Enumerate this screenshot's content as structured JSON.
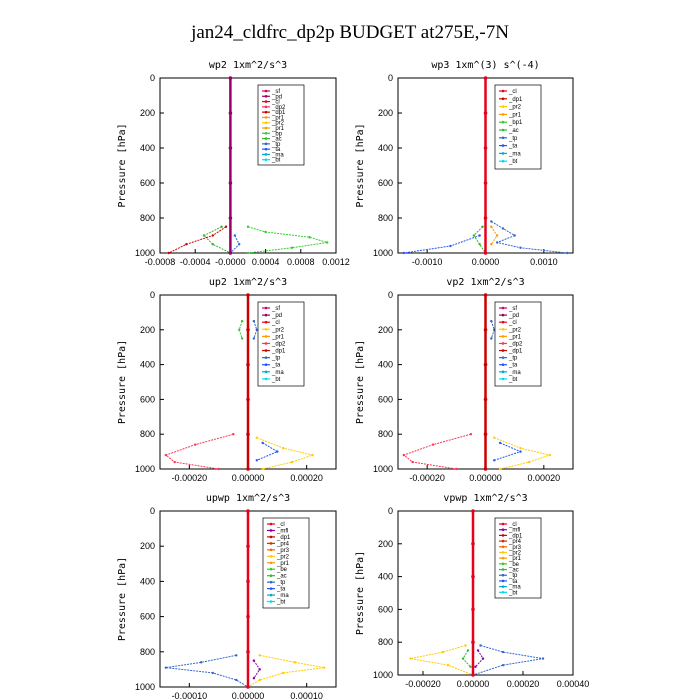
{
  "title": "jan24_cldfrc_dp2p  BUDGET at275E,-7N",
  "colors": {
    "sf": "#cc0066",
    "pd": "#990066",
    "cl": "#e6001a",
    "dp2": "#ff3355",
    "dp1": "#cc0000",
    "pr1": "#ff9900",
    "pr2": "#ffcc00",
    "bp1": "#33cc33",
    "bp": "#33cc33",
    "ac": "#33bb33",
    "tp": "#3366cc",
    "ta": "#2255ff",
    "ma": "#00aacc",
    "bt": "#00ddee",
    "mfl": "#8800aa",
    "pr4": "#cc3300",
    "pr3": "#ff6600",
    "be": "#33cc33",
    "line": "#cc0000"
  },
  "chart_data": [
    {
      "type": "line",
      "title": "wp2  1xm^2/s^3",
      "ylabel": "Pressure [hPa]",
      "ylim": [
        1000,
        0
      ],
      "xlim": [
        -0.0008,
        0.0012
      ],
      "xticks": [
        "-0.0008",
        "-0.0004",
        "-0.0000",
        "0.0004",
        "0.0008",
        "0.0012"
      ],
      "xtick_values": [
        -0.0008,
        -0.0004,
        0,
        0.0004,
        0.0008,
        0.0012
      ],
      "yticks": [
        "0",
        "200",
        "400",
        "600",
        "800",
        "1000"
      ],
      "legend": [
        "_sf",
        "_pd",
        "_cl",
        "_dp2",
        "_dp1",
        "_pr1",
        "_pr2",
        "_pr1",
        "_bp",
        "_ac",
        "_tp",
        "_ta",
        "_ma",
        "_bt"
      ],
      "legend_keys": [
        "sf",
        "pd",
        "cl",
        "dp2",
        "dp1",
        "pr1",
        "pr2",
        "pr1",
        "bp",
        "ac",
        "tp",
        "ta",
        "ma",
        "bt"
      ],
      "series": [
        {
          "key": "bp1",
          "p": [
            850,
            880,
            910,
            940,
            970,
            1000
          ],
          "x": [
            0.0002,
            0.0004,
            0.0009,
            0.0011,
            0.0007,
            0.0002
          ]
        },
        {
          "key": "ac",
          "p": [
            850,
            900,
            950,
            1000
          ],
          "x": [
            -0.0001,
            -0.0003,
            -0.0002,
            0.0
          ]
        },
        {
          "key": "dp1",
          "p": [
            850,
            900,
            950,
            1000
          ],
          "x": [
            -5e-05,
            -0.0002,
            -0.0005,
            -0.0007
          ]
        },
        {
          "key": "tp",
          "p": [
            900,
            950,
            1000
          ],
          "x": [
            5e-05,
            0.0001,
            0.0
          ]
        },
        {
          "key": "pd",
          "p": [
            0,
            200,
            400,
            600,
            800,
            1000
          ],
          "x": [
            0,
            0,
            0,
            0,
            0,
            0
          ]
        }
      ]
    },
    {
      "type": "line",
      "title": "wp3  1xm^(3) s^(-4)",
      "ylabel": "Pressure [hPa]",
      "ylim": [
        1000,
        0
      ],
      "xlim": [
        -0.0015,
        0.0015
      ],
      "xticks": [
        "-0.0010",
        "0.0000",
        "0.0010"
      ],
      "xtick_values": [
        -0.001,
        0,
        0.001
      ],
      "yticks": [
        "0",
        "200",
        "400",
        "600",
        "800",
        "1000"
      ],
      "legend": [
        "_cl",
        "_dp1",
        "_pr2",
        "_pr1",
        "_bp1",
        "_ac",
        "_tp",
        "_ta",
        "_ma",
        "_bt"
      ],
      "legend_keys": [
        "cl",
        "dp1",
        "pr2",
        "pr1",
        "bp1",
        "ac",
        "tp",
        "ta",
        "ma",
        "bt"
      ],
      "series": [
        {
          "key": "tp",
          "p": [
            820,
            860,
            900,
            940,
            970,
            1000
          ],
          "x": [
            0.0001,
            0.0003,
            0.0005,
            0.0002,
            0.0006,
            0.0014
          ]
        },
        {
          "key": "ta",
          "p": [
            900,
            960,
            1000
          ],
          "x": [
            -0.0001,
            -0.0006,
            -0.0014
          ]
        },
        {
          "key": "ac",
          "p": [
            850,
            900,
            950,
            1000
          ],
          "x": [
            -5e-05,
            -0.0002,
            -0.0001,
            0.0
          ]
        },
        {
          "key": "pr1",
          "p": [
            850,
            900,
            950
          ],
          "x": [
            0.0001,
            0.0002,
            0.0001
          ]
        },
        {
          "key": "cl",
          "p": [
            0,
            200,
            400,
            600,
            800,
            1000
          ],
          "x": [
            0,
            0,
            0,
            0,
            0,
            0
          ]
        }
      ]
    },
    {
      "type": "line",
      "title": "up2  1xm^2/s^3",
      "ylabel": "Pressure [hPa]",
      "ylim": [
        1000,
        0
      ],
      "xlim": [
        -0.0003,
        0.0003
      ],
      "xticks": [
        "-0.00020",
        "0.00000",
        "0.00020"
      ],
      "xtick_values": [
        -0.0002,
        0,
        0.0002
      ],
      "yticks": [
        "0",
        "200",
        "400",
        "600",
        "800",
        "1000"
      ],
      "legend": [
        "_sf",
        "_pd",
        "_cl",
        "_pr2",
        "_pr1",
        "_dp2",
        "_dp1",
        "_tp",
        "_ta",
        "_ma",
        "_bt"
      ],
      "legend_keys": [
        "sf",
        "pd",
        "cl",
        "pr2",
        "pr1",
        "dp2",
        "dp1",
        "tp",
        "ta",
        "ma",
        "bt"
      ],
      "series": [
        {
          "key": "dp2",
          "p": [
            800,
            860,
            920,
            960,
            1000
          ],
          "x": [
            -5e-05,
            -0.00018,
            -0.00028,
            -0.00025,
            -0.0001
          ]
        },
        {
          "key": "pr2",
          "p": [
            820,
            880,
            920,
            960,
            1000
          ],
          "x": [
            3e-05,
            0.00012,
            0.00022,
            0.00015,
            5e-05
          ]
        },
        {
          "key": "tp",
          "p": [
            150,
            200,
            250
          ],
          "x": [
            2e-05,
            3e-05,
            2e-05
          ]
        },
        {
          "key": "ta",
          "p": [
            850,
            900,
            950
          ],
          "x": [
            5e-05,
            0.0001,
            3e-05
          ]
        },
        {
          "key": "bp1",
          "p": [
            150,
            200,
            250
          ],
          "x": [
            -2e-05,
            -3e-05,
            -2e-05
          ]
        },
        {
          "key": "line",
          "p": [
            0,
            200,
            400,
            600,
            800,
            1000
          ],
          "x": [
            0,
            0,
            0,
            0,
            0,
            0
          ]
        }
      ]
    },
    {
      "type": "line",
      "title": "vp2  1xm^2/s^3",
      "ylabel": "Pressure [hPa]",
      "ylim": [
        1000,
        0
      ],
      "xlim": [
        -0.0003,
        0.0003
      ],
      "xticks": [
        "-0.00020",
        "0.00000",
        "0.00020"
      ],
      "xtick_values": [
        -0.0002,
        0,
        0.0002
      ],
      "yticks": [
        "0",
        "200",
        "400",
        "600",
        "800",
        "1000"
      ],
      "legend": [
        "_sf",
        "_pd",
        "_cl",
        "_pr2",
        "_pr1",
        "_dp2",
        "_dp1",
        "_tp",
        "_ta",
        "_ma",
        "_bt"
      ],
      "legend_keys": [
        "sf",
        "pd",
        "cl",
        "pr2",
        "pr1",
        "dp2",
        "dp1",
        "tp",
        "ta",
        "ma",
        "bt"
      ],
      "series": [
        {
          "key": "dp2",
          "p": [
            800,
            860,
            920,
            960,
            1000
          ],
          "x": [
            -5e-05,
            -0.00018,
            -0.00028,
            -0.00025,
            -0.0001
          ]
        },
        {
          "key": "pr2",
          "p": [
            820,
            880,
            920,
            960,
            1000
          ],
          "x": [
            3e-05,
            0.00012,
            0.00022,
            0.00015,
            5e-05
          ]
        },
        {
          "key": "tp",
          "p": [
            150,
            200,
            250
          ],
          "x": [
            2e-05,
            3e-05,
            2e-05
          ]
        },
        {
          "key": "ta",
          "p": [
            850,
            900,
            950
          ],
          "x": [
            5e-05,
            0.00012,
            3e-05
          ]
        },
        {
          "key": "line",
          "p": [
            0,
            200,
            400,
            600,
            800,
            1000
          ],
          "x": [
            0,
            0,
            0,
            0,
            0,
            0
          ]
        }
      ]
    },
    {
      "type": "line",
      "title": "upwp  1xm^2/s^3",
      "ylabel": "Pressure [hPa]",
      "ylim": [
        1000,
        0
      ],
      "xlim": [
        -0.00015,
        0.00015
      ],
      "xticks": [
        "-0.00010",
        "0.00000",
        "0.00010"
      ],
      "xtick_values": [
        -0.0001,
        0,
        0.0001
      ],
      "yticks": [
        "0",
        "200",
        "400",
        "600",
        "800",
        "1000"
      ],
      "legend": [
        "_cl",
        "_mfl",
        "_dp1",
        "_pr4",
        "_pr3",
        "_pr2",
        "_pr1",
        "_be",
        "_ac",
        "_tp",
        "_ta",
        "_ma",
        "_bt"
      ],
      "legend_keys": [
        "cl",
        "mfl",
        "dp1",
        "pr4",
        "pr3",
        "pr2",
        "pr1",
        "be",
        "ac",
        "tp",
        "ta",
        "ma",
        "bt"
      ],
      "series": [
        {
          "key": "tp",
          "p": [
            820,
            860,
            890,
            920,
            960,
            1000
          ],
          "x": [
            -2e-05,
            -8e-05,
            -0.00014,
            -6e-05,
            -2e-05,
            0.0
          ]
        },
        {
          "key": "pr2",
          "p": [
            820,
            860,
            890,
            920,
            960,
            1000
          ],
          "x": [
            2e-05,
            8e-05,
            0.00013,
            6e-05,
            2e-05,
            0.0
          ]
        },
        {
          "key": "mfl",
          "p": [
            850,
            900,
            950
          ],
          "x": [
            1e-05,
            2e-05,
            1e-05
          ]
        },
        {
          "key": "cl",
          "p": [
            0,
            200,
            400,
            600,
            800,
            1000
          ],
          "x": [
            0,
            0,
            0,
            0,
            0,
            0
          ]
        }
      ]
    },
    {
      "type": "line",
      "title": "vpwp  1xm^2/s^3",
      "ylabel": "Pressure [hPa]",
      "ylim": [
        1000,
        0
      ],
      "xlim": [
        -0.0003,
        0.0004
      ],
      "xticks": [
        "-0.00020",
        "0.00000",
        "0.00020",
        "0.00040"
      ],
      "xtick_values": [
        -0.0002,
        0,
        0.0002,
        0.0004
      ],
      "yticks": [
        "0",
        "200",
        "400",
        "600",
        "800",
        "1000"
      ],
      "legend": [
        "_cl",
        "_mfl",
        "_dp1",
        "_pr4",
        "_pr3",
        "_pr2",
        "_pr1",
        "_be",
        "_ac",
        "_tp",
        "_ta",
        "_ma",
        "_bt"
      ],
      "legend_keys": [
        "cl",
        "mfl",
        "dp1",
        "pr4",
        "pr3",
        "pr2",
        "pr1",
        "be",
        "ac",
        "tp",
        "ta",
        "ma",
        "bt"
      ],
      "series": [
        {
          "key": "tp",
          "p": [
            820,
            860,
            900,
            940,
            1000
          ],
          "x": [
            3e-05,
            0.00012,
            0.00028,
            0.00012,
            0.0
          ]
        },
        {
          "key": "pr2",
          "p": [
            820,
            860,
            900,
            940,
            1000
          ],
          "x": [
            -3e-05,
            -0.00012,
            -0.00025,
            -0.0001,
            0.0
          ]
        },
        {
          "key": "ac",
          "p": [
            850,
            900,
            950
          ],
          "x": [
            -2e-05,
            -4e-05,
            -1e-05
          ]
        },
        {
          "key": "mfl",
          "p": [
            850,
            900,
            950
          ],
          "x": [
            2e-05,
            4e-05,
            1e-05
          ]
        },
        {
          "key": "cl",
          "p": [
            0,
            200,
            400,
            600,
            800,
            1000
          ],
          "x": [
            0,
            0,
            0,
            0,
            0,
            0
          ]
        }
      ]
    }
  ]
}
